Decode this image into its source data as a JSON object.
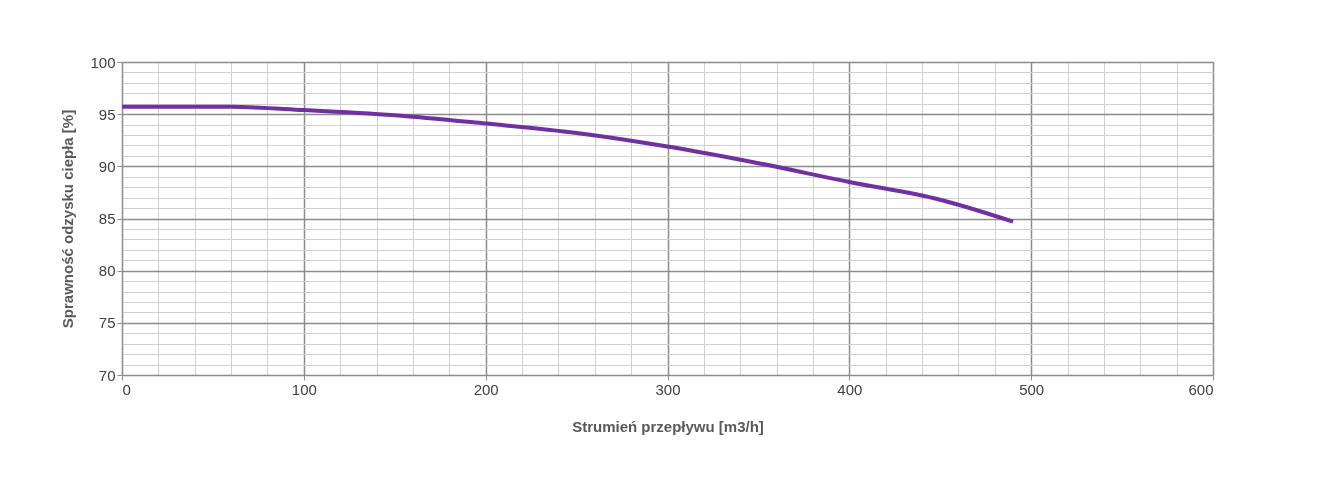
{
  "chart_data": {
    "type": "line",
    "xlabel": "Strumień przepływu   [m3/h]",
    "ylabel": "Sprawność odzysku ciepła  [%]",
    "x": [
      0,
      30,
      60,
      100,
      150,
      200,
      250,
      300,
      350,
      400,
      450,
      490
    ],
    "series": [
      {
        "color": "#7030a0",
        "values": [
          95.7,
          95.7,
          95.7,
          95.4,
          94.9,
          94.1,
          93.2,
          91.9,
          90.3,
          88.5,
          86.8,
          84.7
        ]
      }
    ],
    "xlim": [
      0,
      600
    ],
    "ylim": [
      70,
      100
    ],
    "xticks": [
      0,
      {
        "value": 20,
        "label": null
      },
      {
        "value": 40,
        "label": null
      },
      {
        "value": 60,
        "label": null
      },
      {
        "value": 80,
        "label": null
      },
      100,
      {
        "value": 120,
        "label": null
      },
      {
        "value": 140,
        "label": null
      },
      {
        "value": 160,
        "label": null
      },
      {
        "value": 180,
        "label": null
      },
      200,
      {
        "value": 220,
        "label": null
      },
      {
        "value": 240,
        "label": null
      },
      {
        "value": 260,
        "label": null
      },
      {
        "value": 280,
        "label": null
      },
      300,
      {
        "value": 320,
        "label": null
      },
      {
        "value": 340,
        "label": null
      },
      {
        "value": 360,
        "label": null
      },
      {
        "value": 380,
        "label": null
      },
      400,
      {
        "value": 420,
        "label": null
      },
      {
        "value": 440,
        "label": null
      },
      {
        "value": 460,
        "label": null
      },
      {
        "value": 480,
        "label": null
      },
      500,
      {
        "value": 520,
        "label": null
      },
      {
        "value": 540,
        "label": null
      },
      {
        "value": 560,
        "label": null
      },
      {
        "value": 580,
        "label": null
      },
      600
    ],
    "yticks": [
      70,
      {
        "value": 71,
        "label": null
      },
      {
        "value": 72,
        "label": null
      },
      {
        "value": 73,
        "label": null
      },
      {
        "value": 74,
        "label": null
      },
      75,
      {
        "value": 76,
        "label": null
      },
      {
        "value": 77,
        "label": null
      },
      {
        "value": 78,
        "label": null
      },
      {
        "value": 79,
        "label": null
      },
      80,
      {
        "value": 81,
        "label": null
      },
      {
        "value": 82,
        "label": null
      },
      {
        "value": 83,
        "label": null
      },
      {
        "value": 84,
        "label": null
      },
      85,
      {
        "value": 86,
        "label": null
      },
      {
        "value": 87,
        "label": null
      },
      {
        "value": 88,
        "label": null
      },
      {
        "value": 89,
        "label": null
      },
      90,
      {
        "value": 91,
        "label": null
      },
      {
        "value": 92,
        "label": null
      },
      {
        "value": 93,
        "label": null
      },
      {
        "value": 94,
        "label": null
      },
      95,
      {
        "value": 96,
        "label": null
      },
      {
        "value": 97,
        "label": null
      },
      {
        "value": 98,
        "label": null
      },
      {
        "value": 99,
        "label": null
      },
      100
    ],
    "grid": true,
    "marker": "none",
    "line_style": "solid"
  }
}
